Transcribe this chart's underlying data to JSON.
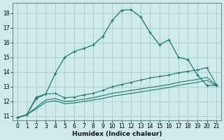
{
  "xlabel": "Humidex (Indice chaleur)",
  "bg_color": "#ceeaea",
  "grid_color": "#aacece",
  "line_color": "#1a7a6e",
  "xlim": [
    -0.5,
    21.5
  ],
  "ylim": [
    10.7,
    18.7
  ],
  "yticks": [
    11,
    12,
    13,
    14,
    15,
    16,
    17,
    18
  ],
  "xticks": [
    0,
    1,
    2,
    3,
    4,
    5,
    6,
    7,
    8,
    9,
    10,
    11,
    12,
    13,
    14,
    15,
    16,
    17,
    18,
    19,
    20,
    21
  ],
  "curve1_x": [
    0,
    1,
    2,
    3,
    4,
    5,
    6,
    7,
    8,
    9,
    10,
    11,
    12,
    13,
    14,
    15,
    16,
    17,
    18,
    19,
    20,
    21
  ],
  "curve1_y": [
    10.9,
    11.1,
    12.3,
    12.5,
    13.9,
    15.0,
    15.4,
    15.6,
    15.85,
    16.4,
    17.5,
    18.2,
    18.25,
    17.75,
    16.7,
    15.85,
    16.2,
    15.0,
    14.85,
    13.8,
    13.1,
    13.1
  ],
  "curve2_x": [
    0,
    1,
    2,
    3,
    4,
    5,
    6,
    7,
    8,
    9,
    10,
    11,
    12,
    13,
    14,
    15,
    16,
    17,
    18,
    19,
    20,
    21
  ],
  "curve2_y": [
    10.9,
    11.1,
    12.2,
    12.5,
    12.55,
    12.25,
    12.3,
    12.45,
    12.55,
    12.75,
    13.0,
    13.15,
    13.3,
    13.45,
    13.6,
    13.7,
    13.8,
    13.95,
    14.05,
    14.15,
    14.3,
    13.15
  ],
  "curve3_x": [
    0,
    1,
    2,
    3,
    4,
    5,
    6,
    7,
    8,
    9,
    10,
    11,
    12,
    13,
    14,
    15,
    16,
    17,
    18,
    19,
    20,
    21
  ],
  "curve3_y": [
    10.9,
    11.1,
    11.6,
    12.1,
    12.2,
    12.0,
    12.05,
    12.15,
    12.25,
    12.4,
    12.55,
    12.65,
    12.75,
    12.85,
    12.95,
    13.05,
    13.15,
    13.3,
    13.4,
    13.5,
    13.65,
    13.1
  ],
  "curve4_x": [
    0,
    1,
    2,
    3,
    4,
    5,
    6,
    7,
    8,
    9,
    10,
    11,
    12,
    13,
    14,
    15,
    16,
    17,
    18,
    19,
    20,
    21
  ],
  "curve4_y": [
    10.9,
    11.1,
    11.5,
    11.95,
    12.05,
    11.85,
    11.9,
    12.0,
    12.1,
    12.2,
    12.35,
    12.45,
    12.55,
    12.65,
    12.75,
    12.85,
    12.95,
    13.1,
    13.2,
    13.3,
    13.45,
    13.05
  ]
}
